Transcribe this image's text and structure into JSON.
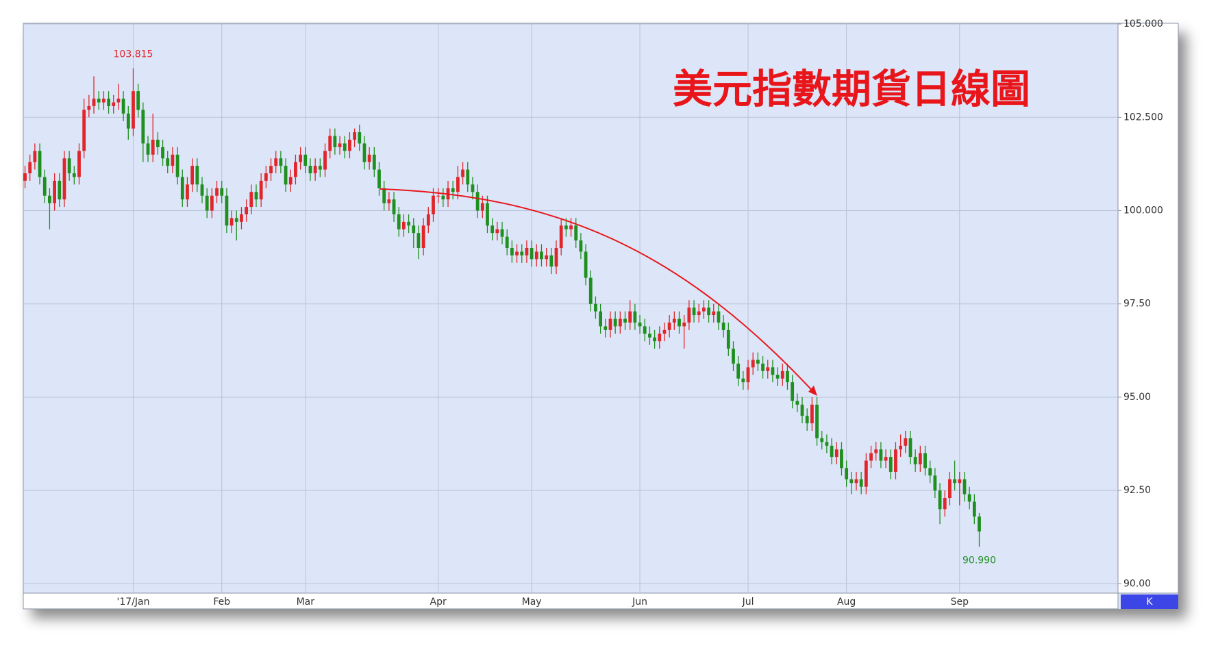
{
  "chart_data": {
    "type": "candlestick",
    "title": "美元指數期貨日線圖",
    "corner_button": "K",
    "up_color": "#e0262b",
    "down_color": "#1f8f1f",
    "xlim": [
      -0.35,
      222.2
    ],
    "ylim": [
      89.75,
      105.02
    ],
    "grid": true,
    "xticks": [
      {
        "value": 22,
        "label": "'17/Jan"
      },
      {
        "value": 40,
        "label": "Feb"
      },
      {
        "value": 57,
        "label": "Mar"
      },
      {
        "value": 84,
        "label": "Apr"
      },
      {
        "value": 103,
        "label": "May"
      },
      {
        "value": 125,
        "label": "Jun"
      },
      {
        "value": 147,
        "label": "Jul"
      },
      {
        "value": 167,
        "label": "Aug"
      },
      {
        "value": 190,
        "label": "Sep"
      }
    ],
    "yticks": [
      {
        "value": 90,
        "label": "90.00"
      },
      {
        "value": 92.5,
        "label": "92.50"
      },
      {
        "value": 95,
        "label": "95.00"
      },
      {
        "value": 97.5,
        "label": "97.50"
      },
      {
        "value": 100,
        "label": "100.000"
      },
      {
        "value": 102.5,
        "label": "102.500"
      },
      {
        "value": 105,
        "label": "105.000"
      }
    ],
    "annotations": [
      {
        "index": 22,
        "value": 103.815,
        "label": "103.815",
        "color": "#e0262b"
      },
      {
        "index": 194,
        "value": 90.99,
        "label": "90.990",
        "color": "#1f8f1f"
      }
    ],
    "open": [
      100.8,
      101.0,
      101.3,
      101.6,
      100.9,
      100.4,
      100.2,
      100.8,
      100.3,
      101.4,
      101.0,
      100.9,
      101.6,
      102.7,
      102.8,
      103.0,
      102.9,
      103.0,
      102.8,
      102.9,
      103.0,
      102.6,
      102.2,
      103.2,
      102.7,
      101.8,
      101.5,
      101.9,
      101.7,
      101.4,
      101.2,
      101.5,
      100.9,
      100.3,
      100.7,
      101.2,
      100.7,
      100.4,
      100.0,
      100.4,
      100.6,
      100.4,
      99.6,
      99.8,
      99.7,
      99.9,
      100.1,
      100.5,
      100.3,
      100.8,
      101.0,
      101.2,
      101.4,
      101.2,
      100.7,
      100.9,
      101.3,
      101.5,
      101.2,
      101.0,
      101.2,
      101.1,
      101.6,
      102.0,
      101.7,
      101.8,
      101.6,
      101.9,
      102.1,
      101.8,
      101.3,
      101.5,
      101.1,
      100.6,
      100.2,
      100.3,
      99.9,
      99.5,
      99.7,
      99.6,
      99.4,
      99.0,
      99.6,
      99.9,
      100.4,
      100.4,
      100.3,
      100.6,
      100.5,
      100.9,
      101.1,
      100.7,
      100.5,
      100.0,
      100.2,
      99.6,
      99.4,
      99.5,
      99.3,
      99.0,
      98.8,
      98.9,
      98.8,
      99.0,
      98.7,
      98.9,
      98.7,
      98.8,
      98.5,
      99.0,
      99.6,
      99.5,
      99.6,
      99.2,
      98.9,
      98.2,
      97.5,
      97.3,
      96.9,
      96.8,
      97.1,
      96.9,
      97.1,
      97.0,
      97.3,
      97.0,
      96.9,
      96.7,
      96.6,
      96.5,
      96.7,
      96.8,
      97.0,
      97.1,
      96.9,
      97.0,
      97.4,
      97.2,
      97.3,
      97.4,
      97.2,
      97.3,
      97.0,
      96.8,
      96.3,
      95.9,
      95.5,
      95.4,
      95.8,
      96.0,
      95.9,
      95.7,
      95.8,
      95.6,
      95.5,
      95.7,
      95.4,
      94.9,
      94.8,
      94.5,
      94.3,
      94.8,
      93.9,
      93.8,
      93.7,
      93.4,
      93.6,
      93.1,
      92.8,
      92.7,
      92.8,
      92.6,
      93.3,
      93.5,
      93.6,
      93.3,
      93.4,
      93.0,
      93.6,
      93.7,
      93.9,
      93.4,
      93.2,
      93.5,
      93.1,
      92.9,
      92.5,
      92.0,
      92.3,
      92.8,
      92.7,
      92.8,
      92.4,
      92.2,
      91.8
    ],
    "high": [
      101.2,
      101.5,
      101.8,
      101.8,
      101.1,
      100.6,
      101.0,
      101.0,
      101.6,
      101.6,
      101.2,
      101.8,
      103.0,
      103.1,
      103.6,
      103.2,
      103.2,
      103.2,
      103.1,
      103.4,
      103.2,
      102.8,
      103.815,
      103.4,
      102.9,
      102.0,
      102.6,
      102.1,
      101.9,
      101.6,
      101.7,
      101.7,
      101.1,
      100.9,
      101.4,
      101.4,
      100.9,
      100.6,
      100.6,
      100.8,
      100.8,
      100.6,
      100.0,
      100.0,
      100.1,
      100.3,
      100.7,
      100.7,
      101.0,
      101.2,
      101.4,
      101.6,
      101.6,
      101.4,
      101.1,
      101.5,
      101.7,
      101.7,
      101.4,
      101.4,
      101.4,
      101.8,
      102.2,
      102.2,
      102.0,
      102.0,
      102.1,
      102.2,
      102.3,
      102.0,
      101.7,
      101.7,
      101.3,
      100.8,
      100.5,
      100.5,
      100.1,
      99.9,
      99.9,
      99.8,
      99.6,
      99.8,
      100.1,
      100.6,
      100.6,
      100.6,
      100.8,
      100.8,
      101.2,
      101.3,
      101.3,
      100.9,
      100.7,
      100.4,
      100.4,
      99.8,
      99.7,
      99.7,
      99.5,
      99.2,
      99.1,
      99.1,
      99.2,
      99.2,
      99.1,
      99.1,
      99.0,
      99.0,
      99.2,
      99.8,
      99.8,
      99.8,
      99.8,
      99.4,
      99.1,
      98.4,
      97.7,
      97.5,
      97.1,
      97.3,
      97.3,
      97.3,
      97.3,
      97.6,
      97.5,
      97.2,
      97.1,
      96.9,
      96.8,
      96.9,
      97.0,
      97.2,
      97.3,
      97.3,
      97.2,
      97.6,
      97.6,
      97.5,
      97.6,
      97.6,
      97.5,
      97.5,
      97.2,
      97.0,
      96.5,
      96.1,
      95.7,
      96.0,
      96.2,
      96.2,
      96.1,
      96.0,
      96.0,
      95.8,
      95.9,
      95.9,
      95.6,
      95.1,
      95.0,
      94.7,
      95.0,
      95.0,
      94.1,
      94.0,
      93.9,
      93.8,
      93.8,
      93.3,
      93.0,
      93.0,
      93.0,
      93.5,
      93.7,
      93.8,
      93.8,
      93.6,
      93.6,
      93.8,
      94.0,
      94.1,
      94.1,
      93.6,
      93.7,
      93.7,
      93.3,
      93.1,
      92.7,
      92.5,
      93.0,
      93.3,
      93.0,
      93.0,
      92.6,
      92.4,
      91.9
    ],
    "low": [
      100.6,
      100.8,
      101.1,
      100.7,
      100.2,
      99.5,
      100.0,
      100.1,
      100.1,
      100.8,
      100.7,
      100.7,
      101.4,
      102.5,
      102.6,
      102.7,
      102.7,
      102.6,
      102.6,
      102.7,
      102.4,
      101.9,
      102.0,
      102.5,
      101.3,
      101.3,
      101.3,
      101.5,
      101.2,
      101.0,
      101.0,
      100.7,
      100.1,
      100.1,
      100.5,
      100.5,
      100.2,
      99.8,
      99.8,
      100.2,
      100.2,
      99.4,
      99.4,
      99.2,
      99.5,
      99.7,
      99.9,
      100.1,
      100.1,
      100.6,
      100.8,
      101.0,
      101.0,
      100.5,
      100.5,
      100.7,
      101.1,
      101.0,
      100.8,
      100.8,
      100.9,
      100.9,
      101.4,
      101.5,
      101.5,
      101.4,
      101.4,
      101.7,
      101.6,
      101.1,
      101.1,
      100.9,
      100.4,
      100.0,
      100.0,
      99.7,
      99.3,
      99.3,
      99.4,
      99.0,
      98.7,
      98.8,
      99.4,
      99.7,
      100.2,
      100.1,
      100.1,
      100.3,
      100.3,
      100.7,
      100.5,
      100.3,
      99.8,
      99.8,
      99.4,
      99.2,
      99.2,
      99.1,
      98.8,
      98.6,
      98.6,
      98.6,
      98.6,
      98.5,
      98.5,
      98.5,
      98.5,
      98.3,
      98.3,
      98.8,
      99.3,
      99.3,
      99.0,
      98.7,
      98.0,
      97.3,
      97.1,
      96.7,
      96.6,
      96.6,
      96.7,
      96.7,
      96.8,
      96.8,
      96.8,
      96.7,
      96.5,
      96.4,
      96.3,
      96.3,
      96.5,
      96.6,
      96.8,
      96.7,
      96.3,
      96.8,
      97.0,
      97.0,
      97.1,
      97.0,
      97.0,
      96.8,
      96.6,
      96.1,
      95.7,
      95.3,
      95.2,
      95.2,
      95.6,
      95.7,
      95.5,
      95.5,
      95.4,
      95.3,
      95.3,
      95.2,
      94.7,
      94.6,
      94.3,
      94.1,
      94.1,
      93.7,
      93.6,
      93.5,
      93.2,
      93.2,
      92.9,
      92.6,
      92.4,
      92.5,
      92.4,
      92.4,
      93.1,
      93.3,
      93.1,
      93.1,
      92.8,
      92.8,
      93.4,
      93.5,
      93.2,
      93.0,
      93.0,
      92.9,
      92.7,
      92.3,
      91.6,
      91.8,
      92.1,
      92.5,
      92.1,
      92.2,
      92.0,
      91.6,
      90.99
    ],
    "close": [
      101.0,
      101.3,
      101.6,
      100.9,
      100.4,
      100.2,
      100.8,
      100.3,
      101.4,
      101.0,
      100.9,
      101.6,
      102.7,
      102.8,
      103.0,
      102.9,
      103.0,
      102.8,
      102.9,
      103.0,
      102.6,
      102.2,
      103.2,
      102.7,
      101.8,
      101.5,
      101.9,
      101.7,
      101.4,
      101.2,
      101.5,
      100.9,
      100.3,
      100.7,
      101.2,
      100.7,
      100.4,
      100.0,
      100.4,
      100.6,
      100.4,
      99.6,
      99.8,
      99.7,
      99.9,
      100.1,
      100.5,
      100.3,
      100.8,
      101.0,
      101.2,
      101.4,
      101.2,
      100.7,
      100.9,
      101.3,
      101.5,
      101.2,
      101.0,
      101.2,
      101.1,
      101.6,
      102.0,
      101.7,
      101.8,
      101.6,
      101.9,
      102.1,
      101.8,
      101.3,
      101.5,
      101.1,
      100.6,
      100.2,
      100.3,
      99.9,
      99.5,
      99.7,
      99.6,
      99.4,
      99.0,
      99.6,
      99.9,
      100.4,
      100.4,
      100.3,
      100.6,
      100.5,
      100.9,
      101.1,
      100.7,
      100.5,
      100.0,
      100.2,
      99.6,
      99.4,
      99.5,
      99.3,
      99.0,
      98.8,
      98.9,
      98.8,
      99.0,
      98.7,
      98.9,
      98.7,
      98.8,
      98.5,
      99.0,
      99.6,
      99.5,
      99.6,
      99.2,
      98.9,
      98.2,
      97.5,
      97.3,
      96.9,
      96.8,
      97.1,
      96.9,
      97.1,
      97.0,
      97.3,
      97.0,
      96.9,
      96.7,
      96.6,
      96.5,
      96.7,
      96.8,
      97.0,
      97.1,
      96.9,
      97.0,
      97.4,
      97.2,
      97.3,
      97.4,
      97.2,
      97.3,
      97.0,
      96.8,
      96.3,
      95.9,
      95.5,
      95.4,
      95.8,
      96.0,
      95.9,
      95.7,
      95.8,
      95.6,
      95.5,
      95.7,
      95.4,
      94.9,
      94.8,
      94.5,
      94.3,
      94.8,
      93.9,
      93.8,
      93.7,
      93.4,
      93.6,
      93.1,
      92.8,
      92.7,
      92.8,
      92.6,
      93.3,
      93.5,
      93.6,
      93.3,
      93.4,
      93.0,
      93.6,
      93.7,
      93.9,
      93.4,
      93.2,
      93.5,
      93.1,
      92.9,
      92.5,
      92.0,
      92.3,
      92.8,
      92.7,
      92.8,
      92.4,
      92.2,
      91.8,
      91.4
    ]
  }
}
